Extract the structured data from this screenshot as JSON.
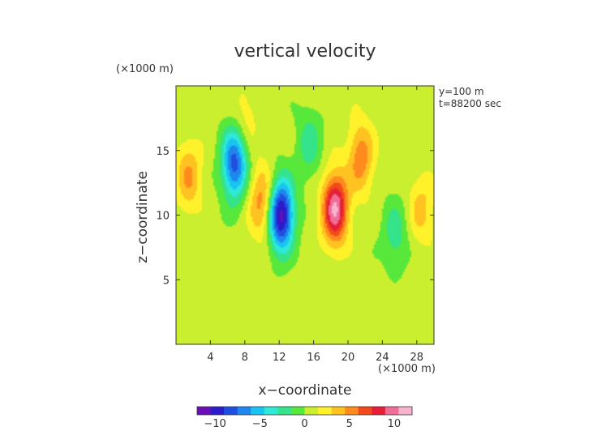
{
  "chart_data": {
    "type": "heatmap",
    "title": "vertical velocity",
    "xlabel": "x−coordinate",
    "ylabel": "z−coordinate",
    "x_unit": "(×1000 m)",
    "y_unit": "(×1000 m)",
    "info_lines": [
      "y=100 m",
      "t=88200 sec"
    ],
    "xlim": [
      0,
      30
    ],
    "ylim": [
      0,
      20
    ],
    "x_ticks": [
      4,
      8,
      12,
      16,
      20,
      24,
      28
    ],
    "y_ticks": [
      5,
      10,
      15
    ],
    "colorbar": {
      "range": [
        -12,
        12
      ],
      "ticks": [
        -10,
        -5,
        0,
        5,
        10
      ],
      "tick_labels": [
        "−10",
        "−5",
        "0",
        "5",
        "10"
      ],
      "colors": [
        "#6a0fb5",
        "#2a1cc8",
        "#1f4fe0",
        "#1f86ee",
        "#18c4f2",
        "#2ee8d8",
        "#34e38a",
        "#58e83c",
        "#c9ef2e",
        "#fff12a",
        "#ffc321",
        "#ff8a1d",
        "#f24a1a",
        "#e81e38",
        "#ee6e98",
        "#f8b4cf"
      ]
    },
    "field_features": [
      {
        "kind": "min",
        "x": 6.8,
        "z": 14.0,
        "value": -9
      },
      {
        "kind": "min",
        "x": 12.2,
        "z": 10.0,
        "value": -12
      },
      {
        "kind": "max",
        "x": 10.0,
        "z": 11.0,
        "value": 5
      },
      {
        "kind": "max",
        "x": 18.5,
        "z": 10.5,
        "value": 10
      },
      {
        "kind": "max",
        "x": 21.5,
        "z": 14.5,
        "value": 5
      },
      {
        "kind": "max",
        "x": 1.5,
        "z": 13.0,
        "value": 4
      },
      {
        "kind": "max",
        "x": 28.5,
        "z": 10.5,
        "value": 3
      },
      {
        "kind": "min",
        "x": 25.5,
        "z": 8.5,
        "value": -3
      },
      {
        "kind": "min",
        "x": 15.5,
        "z": 15.5,
        "value": -3
      },
      {
        "kind": "max",
        "x": 8.0,
        "z": 17.5,
        "value": 2
      }
    ]
  }
}
